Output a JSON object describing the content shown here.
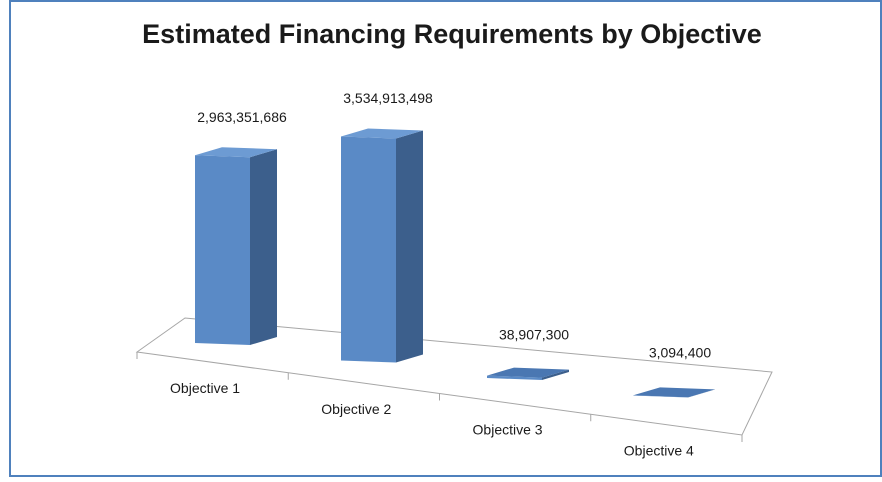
{
  "chart_data": {
    "type": "bar3d",
    "title": "Estimated Financing Requirements by Objective",
    "categories": [
      "Objective 1",
      "Objective 2",
      "Objective 3",
      "Objective 4"
    ],
    "values": [
      2963351686,
      3534913498,
      38907300,
      3094400
    ],
    "value_labels": [
      "2,963,351,686",
      "3,534,913,498",
      "38,907,300",
      "3,094,400"
    ],
    "color": "#5a8ac6"
  }
}
